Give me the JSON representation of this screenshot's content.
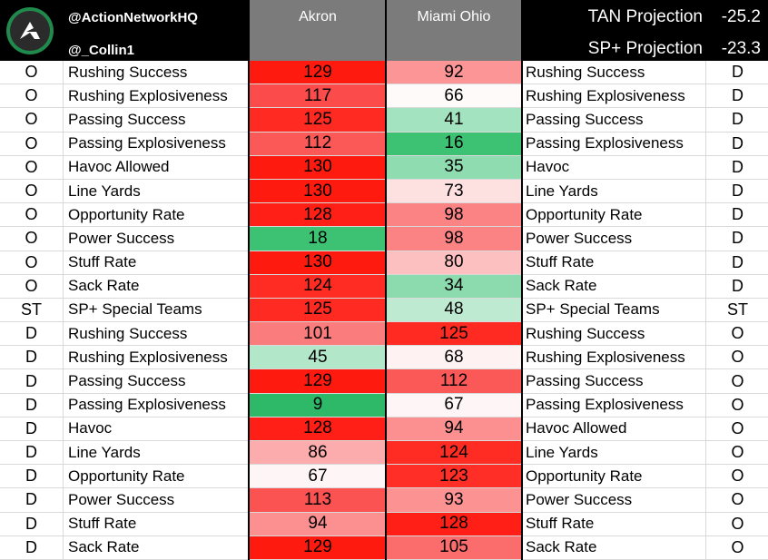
{
  "header": {
    "handle_primary": "@ActionNetworkHQ",
    "handle_secondary": "@_Collin1",
    "team_left": "Akron",
    "team_right": "Miami Ohio",
    "tan_label": "TAN Projection",
    "tan_value": "-25.2",
    "sp_label": "SP+ Projection",
    "sp_value": "-23.3",
    "logo_icon": "action-network-logo"
  },
  "rows": [
    {
      "left_side": "O",
      "left_metric": "Rushing Success",
      "akron": "129",
      "akron_color": "#ff1a10",
      "miami": "92",
      "miami_color": "#fc9595",
      "right_metric": "Rushing Success",
      "right_side": "D"
    },
    {
      "left_side": "O",
      "left_metric": "Rushing Explosiveness",
      "akron": "117",
      "akron_color": "#fb4b4b",
      "miami": "66",
      "miami_color": "#fffafa",
      "right_metric": "Rushing Explosiveness",
      "right_side": "D"
    },
    {
      "left_side": "O",
      "left_metric": "Passing Success",
      "akron": "125",
      "akron_color": "#ff2a22",
      "miami": "41",
      "miami_color": "#a3e3c0",
      "right_metric": "Passing Success",
      "right_side": "D"
    },
    {
      "left_side": "O",
      "left_metric": "Passing Explosiveness",
      "akron": "112",
      "akron_color": "#fb5858",
      "miami": "16",
      "miami_color": "#3dc173",
      "right_metric": "Passing Explosiveness",
      "right_side": "D"
    },
    {
      "left_side": "O",
      "left_metric": "Havoc Allowed",
      "akron": "130",
      "akron_color": "#ff1a10",
      "miami": "35",
      "miami_color": "#8fdcb0",
      "right_metric": "Havoc",
      "right_side": "D"
    },
    {
      "left_side": "O",
      "left_metric": "Line Yards",
      "akron": "130",
      "akron_color": "#ff1a10",
      "miami": "73",
      "miami_color": "#fde0e0",
      "right_metric": "Line Yards",
      "right_side": "D"
    },
    {
      "left_side": "O",
      "left_metric": "Opportunity Rate",
      "akron": "128",
      "akron_color": "#ff1f16",
      "miami": "98",
      "miami_color": "#fb8383",
      "right_metric": "Opportunity Rate",
      "right_side": "D"
    },
    {
      "left_side": "O",
      "left_metric": "Power Success",
      "akron": "18",
      "akron_color": "#3dc173",
      "miami": "98",
      "miami_color": "#fb8383",
      "right_metric": "Power Success",
      "right_side": "D"
    },
    {
      "left_side": "O",
      "left_metric": "Stuff Rate",
      "akron": "130",
      "akron_color": "#ff1a10",
      "miami": "80",
      "miami_color": "#fcc0c0",
      "right_metric": "Stuff Rate",
      "right_side": "D"
    },
    {
      "left_side": "O",
      "left_metric": "Sack Rate",
      "akron": "124",
      "akron_color": "#ff2c24",
      "miami": "34",
      "miami_color": "#8bdbae",
      "right_metric": "Sack Rate",
      "right_side": "D"
    },
    {
      "left_side": "ST",
      "left_metric": "SP+ Special Teams",
      "akron": "125",
      "akron_color": "#ff2a22",
      "miami": "48",
      "miami_color": "#bfead2",
      "right_metric": "SP+ Special Teams",
      "right_side": "ST"
    },
    {
      "left_side": "D",
      "left_metric": "Rushing Success",
      "akron": "101",
      "akron_color": "#fb7c7c",
      "miami": "125",
      "miami_color": "#ff2a22",
      "right_metric": "Rushing Success",
      "right_side": "O"
    },
    {
      "left_side": "D",
      "left_metric": "Rushing Explosiveness",
      "akron": "45",
      "akron_color": "#b3e7ca",
      "miami": "68",
      "miami_color": "#fef2f2",
      "right_metric": "Rushing Explosiveness",
      "right_side": "O"
    },
    {
      "left_side": "D",
      "left_metric": "Passing Success",
      "akron": "129",
      "akron_color": "#ff1a10",
      "miami": "112",
      "miami_color": "#fb5858",
      "right_metric": "Passing Success",
      "right_side": "O"
    },
    {
      "left_side": "D",
      "left_metric": "Passing Explosiveness",
      "akron": "9",
      "akron_color": "#2eb968",
      "miami": "67",
      "miami_color": "#fef6f6",
      "right_metric": "Passing Explosiveness",
      "right_side": "O"
    },
    {
      "left_side": "D",
      "left_metric": "Havoc",
      "akron": "128",
      "akron_color": "#ff1f16",
      "miami": "94",
      "miami_color": "#fc9090",
      "right_metric": "Havoc Allowed",
      "right_side": "O"
    },
    {
      "left_side": "D",
      "left_metric": "Line Yards",
      "akron": "86",
      "akron_color": "#fcacac",
      "miami": "124",
      "miami_color": "#ff2c24",
      "right_metric": "Line Yards",
      "right_side": "O"
    },
    {
      "left_side": "D",
      "left_metric": "Opportunity Rate",
      "akron": "67",
      "akron_color": "#fef6f6",
      "miami": "123",
      "miami_color": "#ff2e26",
      "right_metric": "Opportunity Rate",
      "right_side": "O"
    },
    {
      "left_side": "D",
      "left_metric": "Power Success",
      "akron": "113",
      "akron_color": "#fb5252",
      "miami": "93",
      "miami_color": "#fc9292",
      "right_metric": "Power Success",
      "right_side": "O"
    },
    {
      "left_side": "D",
      "left_metric": "Stuff Rate",
      "akron": "94",
      "akron_color": "#fc9090",
      "miami": "128",
      "miami_color": "#ff1f16",
      "right_metric": "Stuff Rate",
      "right_side": "O"
    },
    {
      "left_side": "D",
      "left_metric": "Sack Rate",
      "akron": "129",
      "akron_color": "#ff1a10",
      "miami": "105",
      "miami_color": "#fb6c6c",
      "right_metric": "Sack Rate",
      "right_side": "O"
    }
  ]
}
